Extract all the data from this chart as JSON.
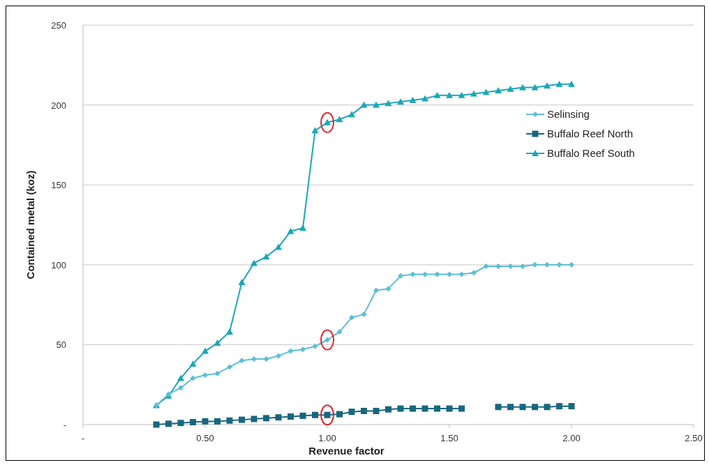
{
  "chart_data": {
    "type": "line",
    "xlabel": "Revenue factor",
    "ylabel": "Contained metal (koz)",
    "x": [
      0.3,
      0.35,
      0.4,
      0.45,
      0.5,
      0.55,
      0.6,
      0.65,
      0.7,
      0.75,
      0.8,
      0.85,
      0.9,
      0.95,
      1.0,
      1.05,
      1.1,
      1.15,
      1.2,
      1.25,
      1.3,
      1.35,
      1.4,
      1.45,
      1.5,
      1.55,
      1.6,
      1.65,
      1.7,
      1.75,
      1.8,
      1.85,
      1.9,
      1.95,
      2.0
    ],
    "series": [
      {
        "name": "Selinsing",
        "color": "#5cbfd6",
        "marker": "diamond",
        "values": [
          12,
          19,
          23,
          29,
          31,
          32,
          36,
          40,
          41,
          41,
          43,
          46,
          47,
          49,
          53,
          58,
          67,
          69,
          84,
          85,
          93,
          94,
          94,
          94,
          94,
          94,
          95,
          99,
          99,
          99,
          99,
          100,
          100,
          100,
          100
        ]
      },
      {
        "name": "Buffalo Reef North",
        "color": "#17677f",
        "marker": "square",
        "values": [
          0,
          0.5,
          1,
          1.5,
          2,
          2,
          2.5,
          3,
          3.5,
          4,
          4.5,
          5,
          5.5,
          6,
          6,
          6.5,
          8,
          8.5,
          8.5,
          9.5,
          10,
          10,
          10,
          10,
          10,
          10,
          null,
          null,
          11,
          11,
          11,
          11,
          11,
          11.5,
          11.5
        ]
      },
      {
        "name": "Buffalo Reef South",
        "color": "#1ba7b7",
        "marker": "triangle",
        "values": [
          12,
          18,
          29,
          38,
          46,
          51,
          58,
          89,
          101,
          105,
          111,
          121,
          123,
          184,
          189,
          191,
          194,
          200,
          200,
          201,
          202,
          203,
          204,
          206,
          206,
          206,
          207,
          208,
          209,
          210,
          211,
          211,
          212,
          213,
          213
        ]
      }
    ],
    "xlim": [
      0,
      2.5
    ],
    "xticks": [
      {
        "value": 0,
        "label": "-"
      },
      {
        "value": 0.5,
        "label": "0.50"
      },
      {
        "value": 1,
        "label": "1.00"
      },
      {
        "value": 1.5,
        "label": "1.50"
      },
      {
        "value": 2,
        "label": "2.00"
      },
      {
        "value": 2.5,
        "label": "2.50"
      }
    ],
    "ylim": [
      0,
      250
    ],
    "yticks": [
      {
        "value": 0,
        "label": "-"
      },
      {
        "value": 50,
        "label": "50"
      },
      {
        "value": 100,
        "label": "100"
      },
      {
        "value": 150,
        "label": "150"
      },
      {
        "value": 200,
        "label": "200"
      },
      {
        "value": 250,
        "label": "250"
      }
    ],
    "grid": "y",
    "legend": "top right"
  }
}
